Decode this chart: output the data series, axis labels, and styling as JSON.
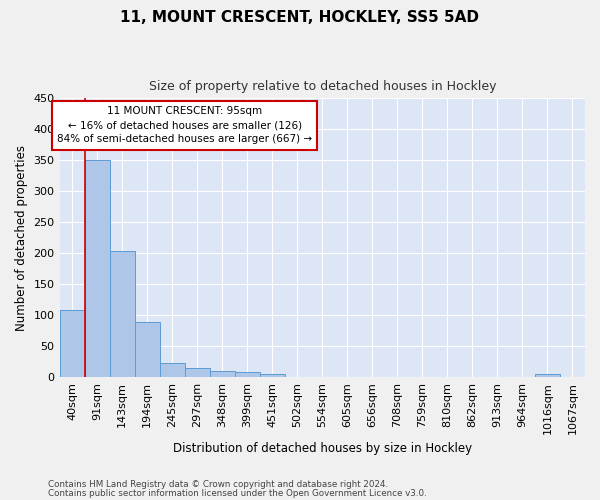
{
  "title1": "11, MOUNT CRESCENT, HOCKLEY, SS5 5AD",
  "title2": "Size of property relative to detached houses in Hockley",
  "xlabel": "Distribution of detached houses by size in Hockley",
  "ylabel": "Number of detached properties",
  "footnote1": "Contains HM Land Registry data © Crown copyright and database right 2024.",
  "footnote2": "Contains public sector information licensed under the Open Government Licence v3.0.",
  "bar_labels": [
    "40sqm",
    "91sqm",
    "143sqm",
    "194sqm",
    "245sqm",
    "297sqm",
    "348sqm",
    "399sqm",
    "451sqm",
    "502sqm",
    "554sqm",
    "605sqm",
    "656sqm",
    "708sqm",
    "759sqm",
    "810sqm",
    "862sqm",
    "913sqm",
    "964sqm",
    "1016sqm",
    "1067sqm"
  ],
  "bar_values": [
    108,
    350,
    203,
    89,
    23,
    14,
    9,
    8,
    4,
    0,
    0,
    0,
    0,
    0,
    0,
    0,
    0,
    0,
    0,
    4,
    0
  ],
  "bar_color": "#aec6e8",
  "bar_edge_color": "#5b9bd5",
  "bg_color": "#dce6f5",
  "grid_color": "#ffffff",
  "property_line_x": 0.5,
  "annotation_text": "11 MOUNT CRESCENT: 95sqm\n← 16% of detached houses are smaller (126)\n84% of semi-detached houses are larger (667) →",
  "annotation_box_color": "#ffffff",
  "annotation_box_edge_color": "#cc0000",
  "property_line_color": "#cc0000",
  "ylim": [
    0,
    450
  ],
  "yticks": [
    0,
    50,
    100,
    150,
    200,
    250,
    300,
    350,
    400,
    450
  ],
  "fig_width": 6.0,
  "fig_height": 5.0,
  "fig_bg_color": "#f0f0f0"
}
